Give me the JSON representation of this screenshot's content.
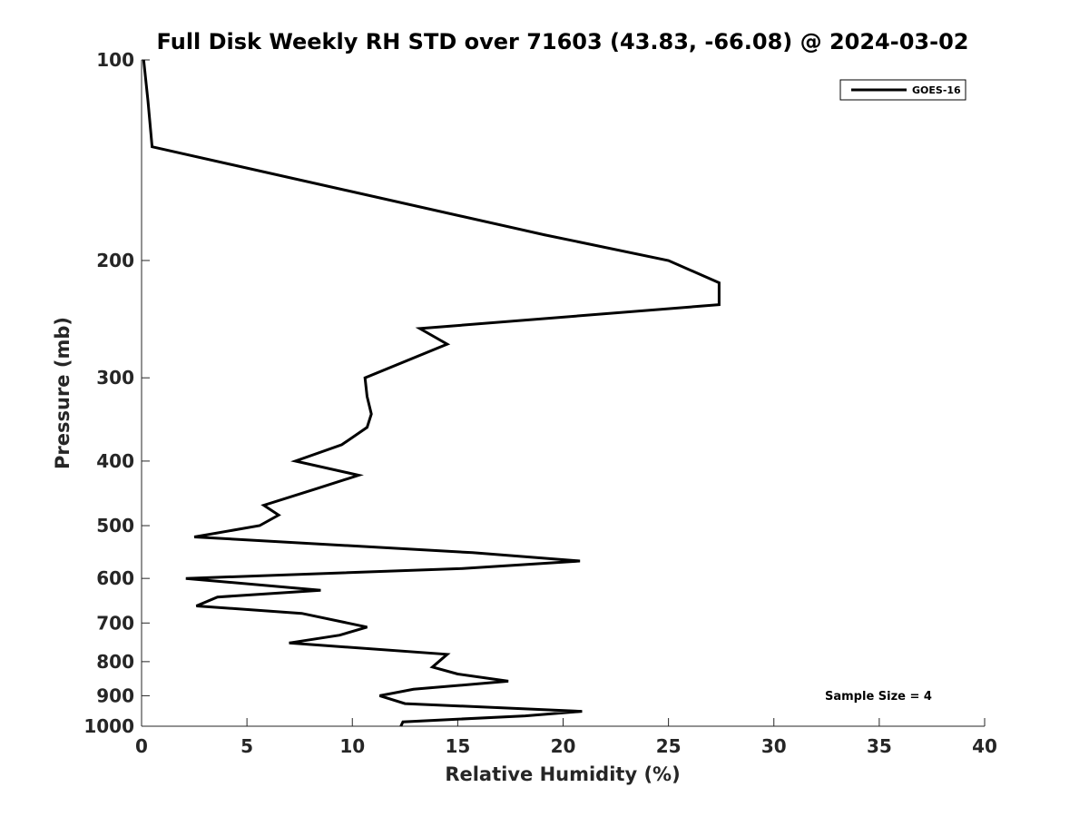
{
  "chart_data": {
    "type": "line",
    "title": "Full Disk Weekly RH STD over 71603 (43.83, -66.08) @ 2024-03-02",
    "xlabel": "Relative Humidity (%)",
    "ylabel": "Pressure (mb)",
    "xlim": [
      0,
      40
    ],
    "ylim": [
      100,
      1000
    ],
    "yscale": "log",
    "yreversed": true,
    "xticks": [
      0,
      5,
      10,
      15,
      20,
      25,
      30,
      35,
      40
    ],
    "yticks": [
      100,
      200,
      300,
      400,
      500,
      600,
      700,
      800,
      900,
      1000
    ],
    "grid": false,
    "legend": {
      "position": "top-right",
      "entries": [
        "GOES-16"
      ]
    },
    "annotation": "Sample Size = 4",
    "series": [
      {
        "name": "GOES-16",
        "color": "#000000",
        "points": [
          [
            0.1,
            100
          ],
          [
            0.3,
            115
          ],
          [
            0.5,
            135
          ],
          [
            19.1,
            183
          ],
          [
            25.0,
            200
          ],
          [
            27.4,
            216
          ],
          [
            27.4,
            233
          ],
          [
            13.2,
            253
          ],
          [
            14.5,
            267
          ],
          [
            10.6,
            300
          ],
          [
            10.7,
            320
          ],
          [
            10.9,
            340
          ],
          [
            10.7,
            356
          ],
          [
            9.5,
            378
          ],
          [
            7.3,
            400
          ],
          [
            10.3,
            420
          ],
          [
            8.3,
            440
          ],
          [
            5.8,
            466
          ],
          [
            6.5,
            482
          ],
          [
            5.6,
            500
          ],
          [
            2.5,
            520
          ],
          [
            15.7,
            549
          ],
          [
            20.8,
            565
          ],
          [
            15.1,
            580
          ],
          [
            2.1,
            600
          ],
          [
            8.5,
            625
          ],
          [
            3.6,
            640
          ],
          [
            2.6,
            660
          ],
          [
            7.6,
            677
          ],
          [
            10.7,
            710
          ],
          [
            9.4,
            730
          ],
          [
            7.0,
            750
          ],
          [
            14.5,
            780
          ],
          [
            13.8,
            815
          ],
          [
            15.0,
            835
          ],
          [
            17.4,
            856
          ],
          [
            12.9,
            880
          ],
          [
            11.3,
            900
          ],
          [
            12.5,
            925
          ],
          [
            20.9,
            950
          ],
          [
            18.2,
            965
          ],
          [
            12.4,
            985
          ],
          [
            12.3,
            1000
          ]
        ]
      }
    ]
  }
}
